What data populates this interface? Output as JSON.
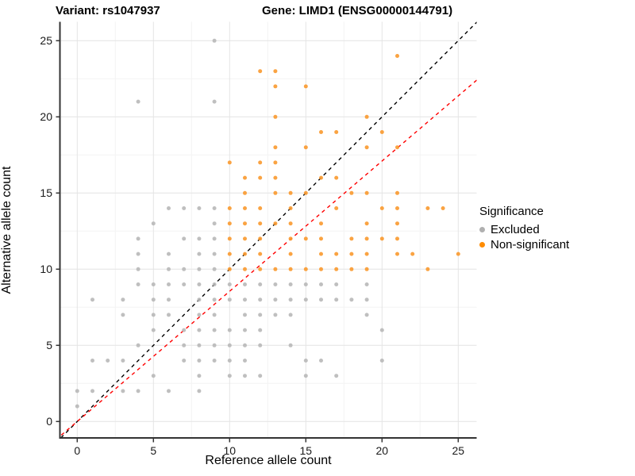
{
  "titles": {
    "left": "Variant: rs1047937",
    "right": "Gene: LIMD1 (ENSG00000144791)"
  },
  "axes": {
    "x": {
      "label": "Reference allele count",
      "ticks": [
        0,
        5,
        10,
        15,
        20,
        25
      ],
      "minor_ticks": [
        2.5,
        7.5,
        12.5,
        17.5,
        22.5
      ],
      "range": [
        -1.25,
        26.25
      ]
    },
    "y": {
      "label": "Alternative allele count",
      "ticks": [
        0,
        5,
        10,
        15,
        20,
        25
      ],
      "minor_ticks": [
        2.5,
        7.5,
        12.5,
        17.5,
        22.5
      ],
      "range": [
        -1.25,
        26.25
      ]
    }
  },
  "legend": {
    "title": "Significance",
    "items": [
      {
        "label": "Excluded",
        "color": "#b0b0b0"
      },
      {
        "label": "Non-significant",
        "color": "#ff8c00"
      }
    ]
  },
  "style": {
    "grid_major": "#e4e4e4",
    "grid_minor": "#f3f3f3",
    "axis_line": "#333333",
    "point_gray": "#b8b8b8",
    "point_orange": "#f9992e"
  },
  "chart_data": {
    "type": "scatter",
    "title": "Variant: rs1047937 / Gene: LIMD1 (ENSG00000144791)",
    "xlabel": "Reference allele count",
    "ylabel": "Alternative allele count",
    "xlim": [
      -1.25,
      26.25
    ],
    "ylim": [
      -1.25,
      26.25
    ],
    "grid": true,
    "legend_position": "right",
    "lines": [
      {
        "name": "identity-line",
        "slope": 1.0,
        "intercept": 0,
        "color": "#000000",
        "style": "dashed"
      },
      {
        "name": "expected-ratio-line",
        "slope": 0.855,
        "intercept": 0,
        "color": "#ff0000",
        "style": "dashed"
      }
    ],
    "series": [
      {
        "name": "Excluded",
        "points": [
          [
            9,
            25
          ],
          [
            4,
            21
          ],
          [
            9,
            21
          ],
          [
            6,
            14
          ],
          [
            7,
            14
          ],
          [
            8,
            14
          ],
          [
            9,
            14
          ],
          [
            5,
            13
          ],
          [
            9,
            13
          ],
          [
            4,
            12
          ],
          [
            7,
            12
          ],
          [
            8,
            12
          ],
          [
            9,
            12
          ],
          [
            4,
            11
          ],
          [
            6,
            11
          ],
          [
            8,
            11
          ],
          [
            9,
            11
          ],
          [
            4,
            10
          ],
          [
            6,
            10
          ],
          [
            7,
            10
          ],
          [
            8,
            10
          ],
          [
            9,
            10
          ],
          [
            4,
            9
          ],
          [
            5,
            9
          ],
          [
            6,
            9
          ],
          [
            7,
            9
          ],
          [
            8,
            9
          ],
          [
            9,
            9
          ],
          [
            10,
            9
          ],
          [
            11,
            9
          ],
          [
            12,
            9
          ],
          [
            13,
            9
          ],
          [
            14,
            9
          ],
          [
            15,
            9
          ],
          [
            16,
            9
          ],
          [
            17,
            9
          ],
          [
            19,
            9
          ],
          [
            1,
            8
          ],
          [
            3,
            8
          ],
          [
            5,
            8
          ],
          [
            6,
            8
          ],
          [
            8,
            8
          ],
          [
            9,
            8
          ],
          [
            10,
            8
          ],
          [
            11,
            8
          ],
          [
            12,
            8
          ],
          [
            13,
            8
          ],
          [
            14,
            8
          ],
          [
            15,
            8
          ],
          [
            16,
            8
          ],
          [
            17,
            8
          ],
          [
            18,
            8
          ],
          [
            19,
            8
          ],
          [
            3,
            7
          ],
          [
            5,
            7
          ],
          [
            6,
            7
          ],
          [
            8,
            7
          ],
          [
            9,
            7
          ],
          [
            11,
            7
          ],
          [
            12,
            7
          ],
          [
            13,
            7
          ],
          [
            14,
            7
          ],
          [
            19,
            7
          ],
          [
            5,
            6
          ],
          [
            7,
            6
          ],
          [
            8,
            6
          ],
          [
            9,
            6
          ],
          [
            10,
            6
          ],
          [
            11,
            6
          ],
          [
            12,
            6
          ],
          [
            20,
            6
          ],
          [
            4,
            5
          ],
          [
            7,
            5
          ],
          [
            8,
            5
          ],
          [
            9,
            5
          ],
          [
            10,
            5
          ],
          [
            11,
            5
          ],
          [
            12,
            5
          ],
          [
            14,
            5
          ],
          [
            1,
            4
          ],
          [
            2,
            4
          ],
          [
            3,
            4
          ],
          [
            7,
            4
          ],
          [
            8,
            4
          ],
          [
            9,
            4
          ],
          [
            10,
            4
          ],
          [
            11,
            4
          ],
          [
            15,
            4
          ],
          [
            16,
            4
          ],
          [
            20,
            4
          ],
          [
            5,
            3
          ],
          [
            8,
            3
          ],
          [
            10,
            3
          ],
          [
            11,
            3
          ],
          [
            12,
            3
          ],
          [
            15,
            3
          ],
          [
            17,
            3
          ],
          [
            0,
            2
          ],
          [
            1,
            2
          ],
          [
            3,
            2
          ],
          [
            4,
            2
          ],
          [
            6,
            2
          ],
          [
            8,
            2
          ],
          [
            0,
            1
          ]
        ]
      },
      {
        "name": "Non-significant",
        "points": [
          [
            21,
            24
          ],
          [
            12,
            23
          ],
          [
            13,
            23
          ],
          [
            13,
            22
          ],
          [
            15,
            22
          ],
          [
            13,
            20
          ],
          [
            19,
            20
          ],
          [
            16,
            19
          ],
          [
            17,
            19
          ],
          [
            20,
            19
          ],
          [
            13,
            18
          ],
          [
            15,
            18
          ],
          [
            19,
            18
          ],
          [
            21,
            18
          ],
          [
            10,
            17
          ],
          [
            12,
            17
          ],
          [
            13,
            17
          ],
          [
            11,
            16
          ],
          [
            12,
            16
          ],
          [
            13,
            16
          ],
          [
            16,
            16
          ],
          [
            17,
            16
          ],
          [
            11,
            15
          ],
          [
            13,
            15
          ],
          [
            14,
            15
          ],
          [
            15,
            15
          ],
          [
            18,
            15
          ],
          [
            19,
            15
          ],
          [
            21,
            15
          ],
          [
            10,
            14
          ],
          [
            11,
            14
          ],
          [
            12,
            14
          ],
          [
            14,
            14
          ],
          [
            17,
            14
          ],
          [
            20,
            14
          ],
          [
            21,
            14
          ],
          [
            23,
            14
          ],
          [
            24,
            14
          ],
          [
            10,
            13
          ],
          [
            11,
            13
          ],
          [
            12,
            13
          ],
          [
            13,
            13
          ],
          [
            14,
            13
          ],
          [
            16,
            13
          ],
          [
            19,
            13
          ],
          [
            21,
            13
          ],
          [
            10,
            12
          ],
          [
            11,
            12
          ],
          [
            12,
            12
          ],
          [
            14,
            12
          ],
          [
            15,
            12
          ],
          [
            16,
            12
          ],
          [
            18,
            12
          ],
          [
            19,
            12
          ],
          [
            20,
            12
          ],
          [
            21,
            12
          ],
          [
            10,
            11
          ],
          [
            11,
            11
          ],
          [
            12,
            11
          ],
          [
            14,
            11
          ],
          [
            16,
            11
          ],
          [
            17,
            11
          ],
          [
            18,
            11
          ],
          [
            19,
            11
          ],
          [
            21,
            11
          ],
          [
            22,
            11
          ],
          [
            25,
            11
          ],
          [
            10,
            10
          ],
          [
            11,
            10
          ],
          [
            12,
            10
          ],
          [
            13,
            10
          ],
          [
            14,
            10
          ],
          [
            15,
            10
          ],
          [
            16,
            10
          ],
          [
            17,
            10
          ],
          [
            18,
            10
          ],
          [
            19,
            10
          ],
          [
            23,
            10
          ]
        ]
      }
    ]
  }
}
